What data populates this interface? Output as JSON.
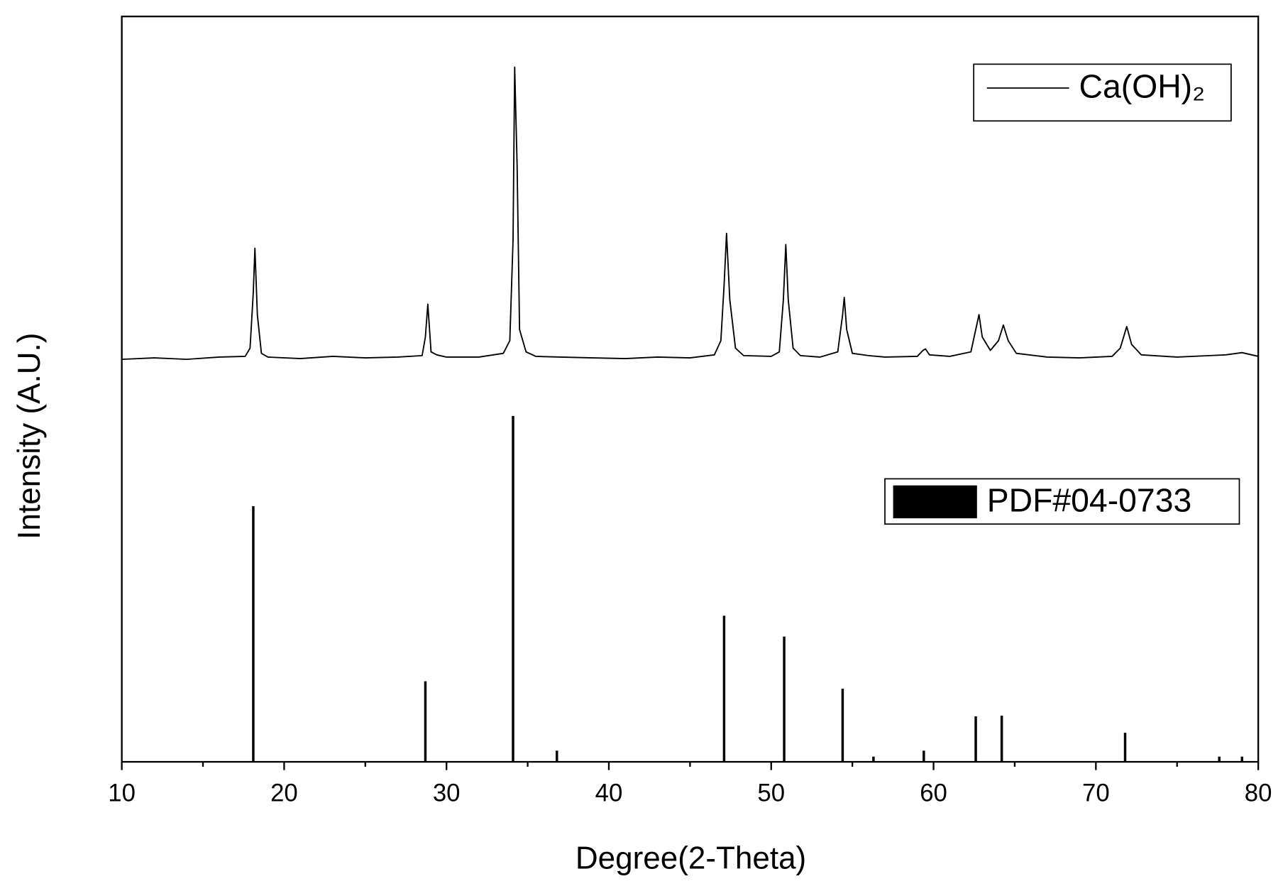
{
  "chart_data": {
    "type": "line",
    "x_label": "Degree(2-Theta)",
    "y_label": "Intensity (A.U.)",
    "xlim": [
      10,
      80
    ],
    "xticks": [
      10,
      20,
      30,
      40,
      50,
      60,
      70,
      80
    ],
    "x_minor_ticks": [
      15,
      25,
      35,
      45,
      55,
      65,
      75
    ],
    "ylim": [
      0,
      100
    ],
    "grid": false,
    "legend": true,
    "series": [
      {
        "name": "Ca(OH)₂",
        "type": "line",
        "color": "#000000",
        "x": [
          10,
          12,
          14,
          16,
          17.6,
          17.9,
          18.1,
          18.2,
          18.35,
          18.6,
          19,
          21,
          23,
          25,
          27,
          28.5,
          28.7,
          28.85,
          29.05,
          29.4,
          30,
          32,
          33.5,
          33.9,
          34.1,
          34.2,
          34.35,
          34.5,
          34.9,
          35.5,
          37,
          39,
          41,
          43,
          45,
          46.5,
          46.9,
          47.1,
          47.25,
          47.45,
          47.8,
          48.3,
          50,
          50.5,
          50.75,
          50.9,
          51.05,
          51.35,
          51.8,
          53,
          54.1,
          54.4,
          54.5,
          54.65,
          55,
          56,
          57,
          59,
          59.35,
          59.5,
          59.75,
          61,
          62.3,
          62.65,
          62.8,
          63,
          63.5,
          64,
          64.3,
          64.6,
          65.1,
          67,
          69,
          71,
          71.5,
          71.9,
          72.2,
          72.8,
          75,
          77,
          78,
          79,
          80
        ],
        "values": [
          54.0,
          54.2,
          54.0,
          54.3,
          54.4,
          55.5,
          63,
          68.9,
          60,
          54.8,
          54.3,
          54.1,
          54.4,
          54.2,
          54.3,
          54.5,
          57,
          61.4,
          55,
          54.6,
          54.3,
          54.3,
          54.8,
          56.5,
          70,
          93.2,
          80,
          58,
          55,
          54.4,
          54.3,
          54.2,
          54.1,
          54.3,
          54.2,
          54.6,
          56.5,
          64,
          70.9,
          62,
          55.5,
          54.5,
          54.4,
          55,
          62,
          69.4,
          62,
          55.5,
          54.5,
          54.3,
          55,
          60,
          62.3,
          58,
          54.8,
          54.5,
          54.3,
          54.4,
          55.2,
          55.4,
          54.6,
          54.4,
          55,
          58.5,
          60,
          57,
          55.2,
          56.5,
          58.6,
          56.5,
          54.8,
          54.3,
          54.2,
          54.4,
          55.5,
          58.4,
          56,
          54.6,
          54.3,
          54.5,
          54.6,
          54.9,
          54.4
        ]
      },
      {
        "name": "PDF#04-0733",
        "type": "stem",
        "color": "#000000",
        "x": [
          18.1,
          28.7,
          34.1,
          36.8,
          47.1,
          50.8,
          54.4,
          56.3,
          59.4,
          62.6,
          64.2,
          71.8,
          77.6,
          79.0
        ],
        "values": [
          34.3,
          10.8,
          46.4,
          1.5,
          19.6,
          16.8,
          9.8,
          0.7,
          1.5,
          6.1,
          6.2,
          3.9,
          0.7,
          0.7
        ]
      }
    ]
  }
}
